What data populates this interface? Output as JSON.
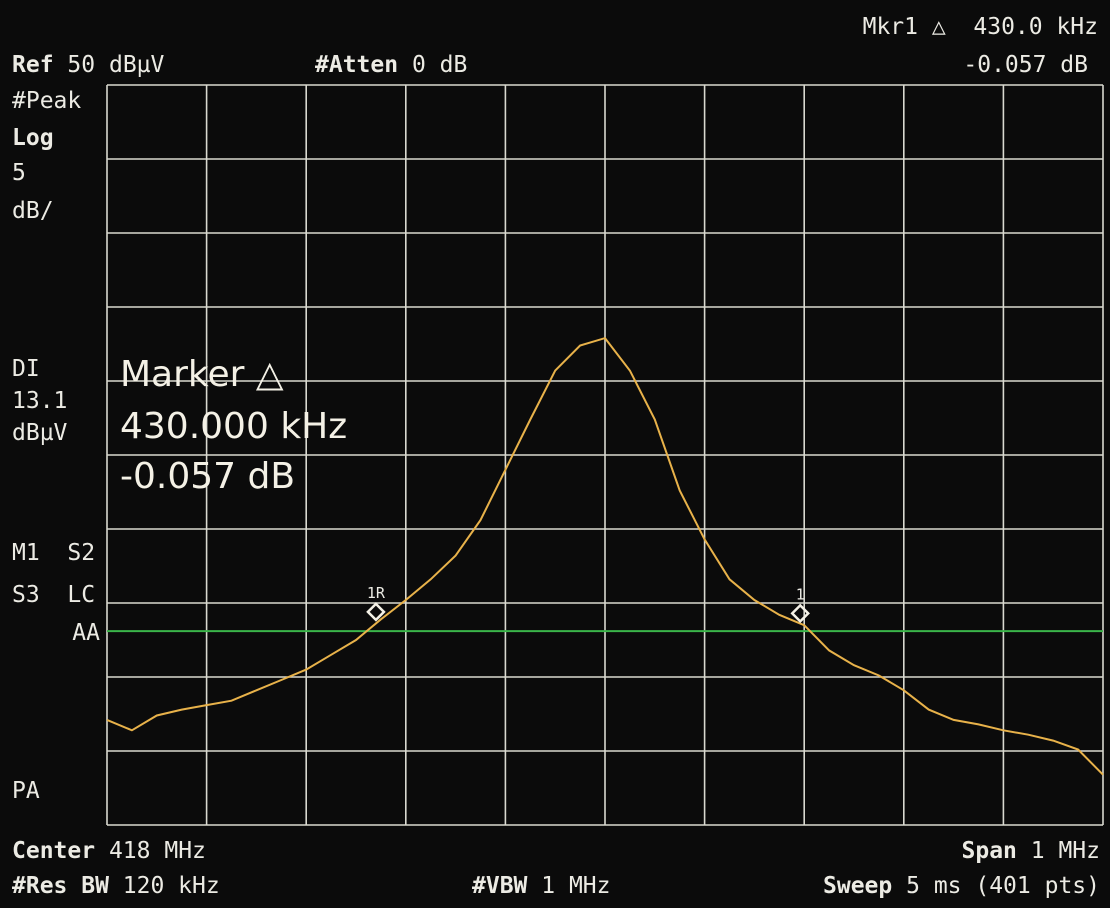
{
  "header": {
    "ref_label": "Ref",
    "ref_value": 50,
    "ref_unit": "dBµV",
    "atten_label": "#Atten",
    "atten_value": "0 dB",
    "marker_readout": [
      "Mkr1 △  430.0 kHz",
      "-0.057 dB"
    ]
  },
  "left_panel": {
    "detector": "#Peak",
    "scale_type": "Log",
    "scale_per_div": 5,
    "scale_unit": "dB/",
    "display_line": {
      "label": "DI",
      "value": 13.1,
      "unit": "dBµV",
      "color": "#3bb54a"
    },
    "status": [
      "M1  S2",
      "S3  LC",
      "AA"
    ],
    "pa": "PA"
  },
  "marker_box": [
    "Marker △",
    "430.000 kHz",
    "-0.057 dB"
  ],
  "footer": {
    "center_label": "Center",
    "center_value": "418 MHz",
    "span_label": "Span",
    "span_value": "1 MHz",
    "res_bw_label": "#Res BW",
    "res_bw_value": "120 kHz",
    "vbw_label": "#VBW",
    "vbw_value": "1 MHz",
    "sweep_label": "Sweep",
    "sweep_value": "5 ms (401 pts)"
  },
  "trace": {
    "color": "#e8b24a",
    "xlim": [
      417.5,
      418.5
    ],
    "x": [
      417.5,
      417.525,
      417.55,
      417.575,
      417.6,
      417.625,
      417.65,
      417.675,
      417.7,
      417.725,
      417.75,
      417.775,
      417.8,
      417.825,
      417.85,
      417.875,
      417.9,
      417.925,
      417.95,
      417.975,
      418,
      418.025,
      418.05,
      418.075,
      418.1,
      418.125,
      418.15,
      418.175,
      418.2,
      418.225,
      418.25,
      418.275,
      418.3,
      418.325,
      418.35,
      418.375,
      418.4,
      418.425,
      418.45,
      418.475,
      418.5
    ],
    "values": [
      7.1,
      6.4,
      7.4,
      7.8,
      8.1,
      8.4,
      9.1,
      9.8,
      10.5,
      11.5,
      12.5,
      13.9,
      15.2,
      16.6,
      18.2,
      20.6,
      24.0,
      27.4,
      30.7,
      32.4,
      32.9,
      30.7,
      27.4,
      22.6,
      19.3,
      16.6,
      15.2,
      14.2,
      13.5,
      11.8,
      10.8,
      10.1,
      9.1,
      7.8,
      7.1,
      6.8,
      6.4,
      6.1,
      5.7,
      5.1,
      3.4
    ]
  },
  "markers": [
    {
      "label": "1R",
      "x": 417.77,
      "value": 14.4
    },
    {
      "label": "1",
      "x": 418.196,
      "value": 14.3
    }
  ]
}
